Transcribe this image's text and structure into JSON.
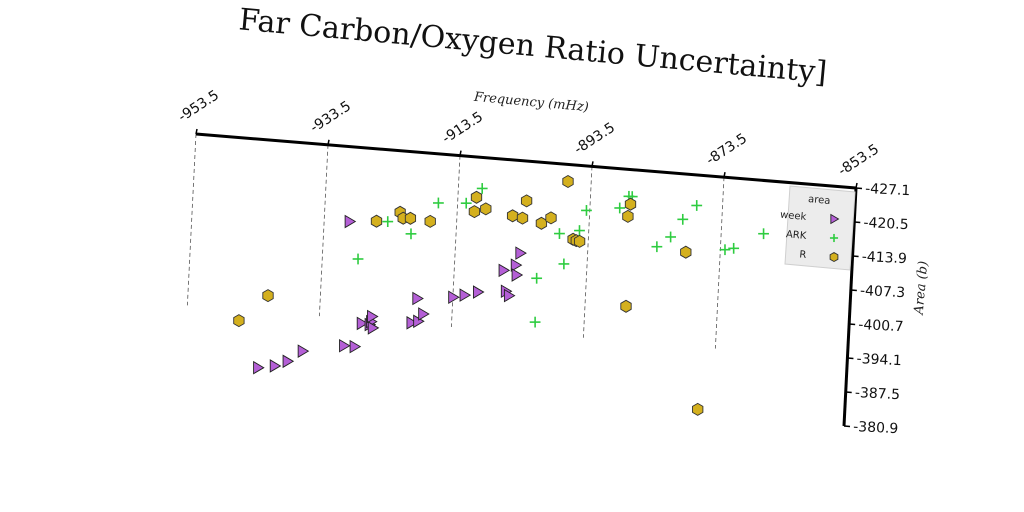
{
  "chart_data": {
    "type": "scatter",
    "title": "Far Carbon/Oxygen Ratio Uncertainty]",
    "xlabel": "Frequency (mHz)",
    "ylabel": "Area (b)",
    "xlim": [
      -953.5,
      -853.5
    ],
    "ylim": [
      -427.1,
      -380.9
    ],
    "x_ticks": [
      "-953.5",
      "-933.5",
      "-913.5",
      "-893.5",
      "-873.5",
      "-853.5"
    ],
    "y_ticks": [
      "-380.9",
      "-387.5",
      "-394.1",
      "-400.7",
      "-407.3",
      "-413.9",
      "-420.5",
      "-427.1"
    ],
    "grid": "vertical dashed",
    "legend": {
      "title": "area",
      "placement": "right"
    },
    "series": [
      {
        "name": "week",
        "marker": "triangle-right",
        "color": "#b45fd6",
        "points": [
          [
            -942.4,
            -382.9
          ],
          [
            -939.9,
            -383.5
          ],
          [
            -938.0,
            -384.6
          ],
          [
            -935.8,
            -386.8
          ],
          [
            -929.6,
            -388.5
          ],
          [
            -928.0,
            -388.5
          ],
          [
            -927.1,
            -393.1
          ],
          [
            -925.9,
            -393.0
          ],
          [
            -925.7,
            -393.6
          ],
          [
            -925.6,
            -394.6
          ],
          [
            -925.4,
            -392.4
          ],
          [
            -919.6,
            -394.0
          ],
          [
            -918.6,
            -394.4
          ],
          [
            -918.9,
            -398.8
          ],
          [
            -917.9,
            -395.9
          ],
          [
            -913.5,
            -399.6
          ],
          [
            -911.8,
            -400.2
          ],
          [
            -909.8,
            -401.0
          ],
          [
            -905.6,
            -401.6
          ],
          [
            -906.1,
            -405.6
          ],
          [
            -905.1,
            -400.8
          ],
          [
            -904.3,
            -406.8
          ],
          [
            -904.1,
            -404.9
          ],
          [
            -903.7,
            -409.2
          ],
          [
            -929.7,
            -412.6
          ]
        ]
      },
      {
        "name": "ARK",
        "marker": "plus",
        "color": "#2ecc40",
        "points": [
          [
            -928.1,
            -405.5
          ],
          [
            -923.9,
            -413.2
          ],
          [
            -920.3,
            -411.2
          ],
          [
            -916.4,
            -417.6
          ],
          [
            -912.2,
            -418.0
          ],
          [
            -909.9,
            -421.1
          ],
          [
            -900.9,
            -396.1
          ],
          [
            -901.0,
            -404.6
          ],
          [
            -897.9,
            -413.6
          ],
          [
            -897.0,
            -407.8
          ],
          [
            -894.9,
            -414.5
          ],
          [
            -894.0,
            -418.5
          ],
          [
            -889.0,
            -419.5
          ],
          [
            -887.7,
            -421.9
          ],
          [
            -887.2,
            -421.9
          ],
          [
            -883.1,
            -412.6
          ],
          [
            -881.1,
            -414.7
          ],
          [
            -879.4,
            -418.3
          ],
          [
            -877.4,
            -421.2
          ],
          [
            -872.8,
            -413.1
          ],
          [
            -871.5,
            -413.5
          ],
          [
            -867.1,
            -416.8
          ],
          [
            -861.1,
            -416.5
          ]
        ]
      },
      {
        "name": "R",
        "marker": "hexagon",
        "color": "#d4b01e",
        "points": [
          [
            -945.6,
            -391.7
          ],
          [
            -941.4,
            -397.0
          ],
          [
            -925.6,
            -413.1
          ],
          [
            -922.1,
            -415.2
          ],
          [
            -921.6,
            -414.1
          ],
          [
            -920.5,
            -414.2
          ],
          [
            -917.5,
            -413.9
          ],
          [
            -910.9,
            -416.5
          ],
          [
            -910.7,
            -419.3
          ],
          [
            -909.2,
            -417.2
          ],
          [
            -905.1,
            -416.3
          ],
          [
            -903.6,
            -416.0
          ],
          [
            -903.1,
            -419.4
          ],
          [
            -900.7,
            -415.3
          ],
          [
            -899.3,
            -416.5
          ],
          [
            -897.0,
            -423.8
          ],
          [
            -895.8,
            -412.7
          ],
          [
            -895.3,
            -412.5
          ],
          [
            -894.8,
            -412.4
          ],
          [
            -887.3,
            -400.6
          ],
          [
            -887.7,
            -418.0
          ],
          [
            -887.4,
            -420.4
          ],
          [
            -878.7,
            -412.0
          ],
          [
            -875.7,
            -381.8
          ]
        ]
      }
    ]
  }
}
